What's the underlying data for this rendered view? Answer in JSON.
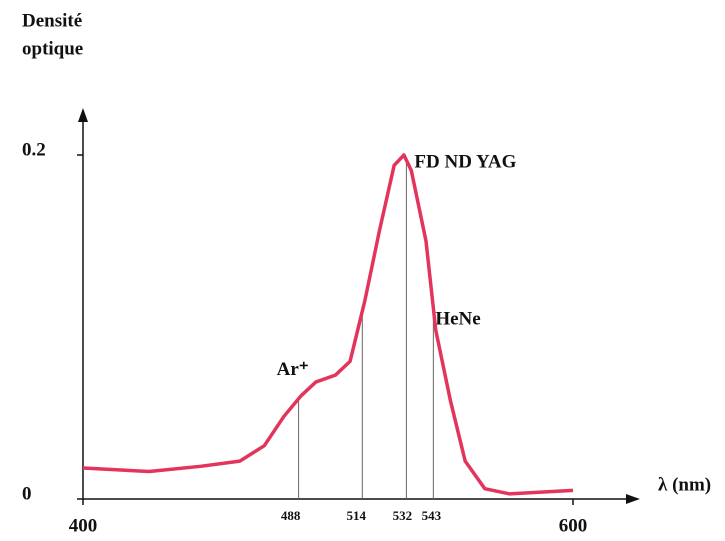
{
  "chart_data": {
    "type": "line",
    "ylabel": [
      "Densité",
      "optique"
    ],
    "xlabel": "λ (nm)",
    "xlim": [
      400,
      600
    ],
    "xticks": [
      400,
      600
    ],
    "ylim": [
      0,
      0.2
    ],
    "yticks": [
      0,
      0.2
    ],
    "series": [
      {
        "color": "#e3345c",
        "x": [
          400,
          427,
          448,
          464,
          474,
          482,
          489,
          495,
          503,
          509,
          515,
          521,
          527,
          531,
          534,
          540,
          544,
          550,
          556,
          564,
          574,
          600
        ],
        "values": [
          0.018,
          0.016,
          0.019,
          0.022,
          0.031,
          0.048,
          0.06,
          0.068,
          0.072,
          0.08,
          0.115,
          0.156,
          0.194,
          0.2,
          0.191,
          0.15,
          0.098,
          0.057,
          0.022,
          0.006,
          0.003,
          0.005
        ]
      }
    ],
    "laser_lines": [
      {
        "x": 488,
        "name": "Ar⁺"
      },
      {
        "x": 514
      },
      {
        "x": 532,
        "name": "FD ND YAG"
      },
      {
        "x": 543,
        "name": "HeNe"
      }
    ]
  }
}
